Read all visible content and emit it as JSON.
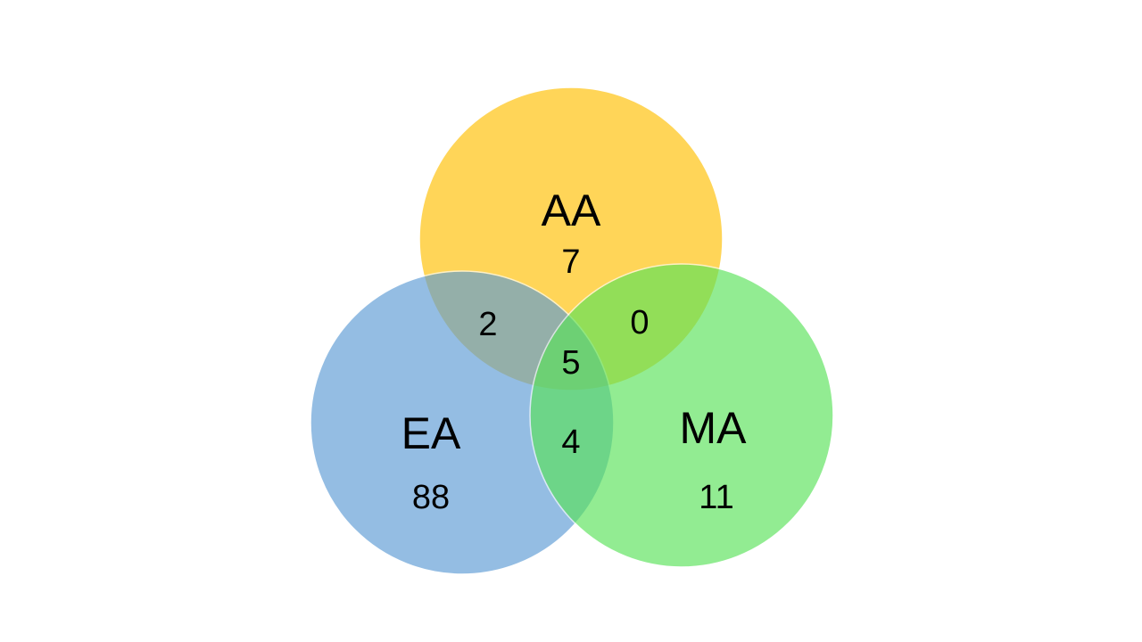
{
  "diagram": {
    "type": "venn",
    "sets": [
      {
        "id": "aa",
        "label": "AA",
        "only_count": "7",
        "color": "#FFC000"
      },
      {
        "id": "ea",
        "label": "EA",
        "only_count": "88",
        "color": "#5B9BD5"
      },
      {
        "id": "ma",
        "label": "MA",
        "only_count": "11",
        "color": "#59E359"
      }
    ],
    "intersections": {
      "aa_ea": "2",
      "aa_ma": "0",
      "ea_ma": "4",
      "aa_ea_ma": "5"
    }
  }
}
